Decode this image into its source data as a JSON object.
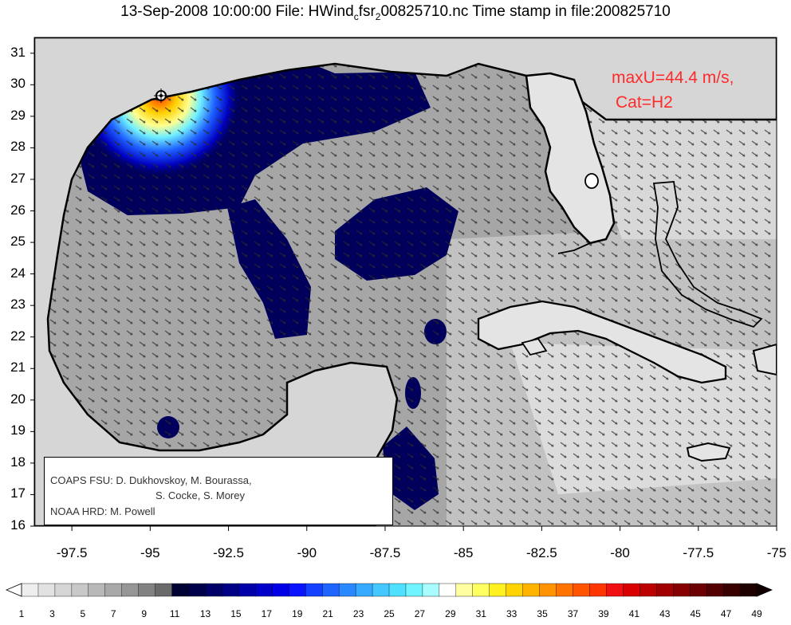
{
  "title": {
    "prefix": "13-Sep-2008 10:00:00 File: HWind",
    "sub": "c",
    "mid": "fsr",
    "sub2": "2",
    "suffix": "00825710.nc Time stamp in file:200825710"
  },
  "stats": {
    "max_wind": "maxU=44.4 m/s,",
    "category": "Cat=H2"
  },
  "credits": {
    "line1": "COAPS FSU: D. Dukhovskoy, M. Bourassa,",
    "line2": "S. Cocke, S. Morey",
    "line3": "NOAA HRD:  M. Powell"
  },
  "axes": {
    "lat_ticks": [
      "31",
      "30",
      "29",
      "28",
      "27",
      "26",
      "25",
      "24",
      "23",
      "22",
      "21",
      "20",
      "19",
      "18",
      "17",
      "16"
    ],
    "lon_ticks": [
      "-97.5",
      "-95",
      "-92.5",
      "-90",
      "-87.5",
      "-85",
      "-82.5",
      "-80",
      "-77.5",
      "-75"
    ],
    "lat_range": [
      16,
      31.5
    ],
    "lon_range": [
      -98.7,
      -75
    ]
  },
  "storm": {
    "lon": -94.4,
    "lat": 29.6
  },
  "colorbar": {
    "labels": [
      "1",
      "3",
      "5",
      "7",
      "9",
      "11",
      "13",
      "15",
      "17",
      "19",
      "21",
      "23",
      "25",
      "27",
      "29",
      "31",
      "33",
      "35",
      "37",
      "39",
      "41",
      "43",
      "45",
      "47",
      "49"
    ],
    "range": [
      1,
      49
    ],
    "colors": [
      "#eeeeee",
      "#e2e2e2",
      "#d6d6d6",
      "#c8c8c8",
      "#b8b8b8",
      "#a8a8a8",
      "#969696",
      "#828282",
      "#6a6a6a",
      "#000032",
      "#00004a",
      "#000066",
      "#000085",
      "#0000a8",
      "#0000c8",
      "#0000e6",
      "#0a14ff",
      "#1440ff",
      "#1e64ff",
      "#2a88ff",
      "#36aaff",
      "#44c8ff",
      "#50e0ff",
      "#70f4ff",
      "#a8fcff",
      "#ffffff",
      "#ffffa0",
      "#ffff60",
      "#fff020",
      "#ffd400",
      "#ffb400",
      "#ff9400",
      "#ff7400",
      "#ff5400",
      "#ff3400",
      "#f01010",
      "#d80000",
      "#bc0000",
      "#a00000",
      "#860000",
      "#6c0000",
      "#520000",
      "#3a0000",
      "#1e0000"
    ]
  }
}
